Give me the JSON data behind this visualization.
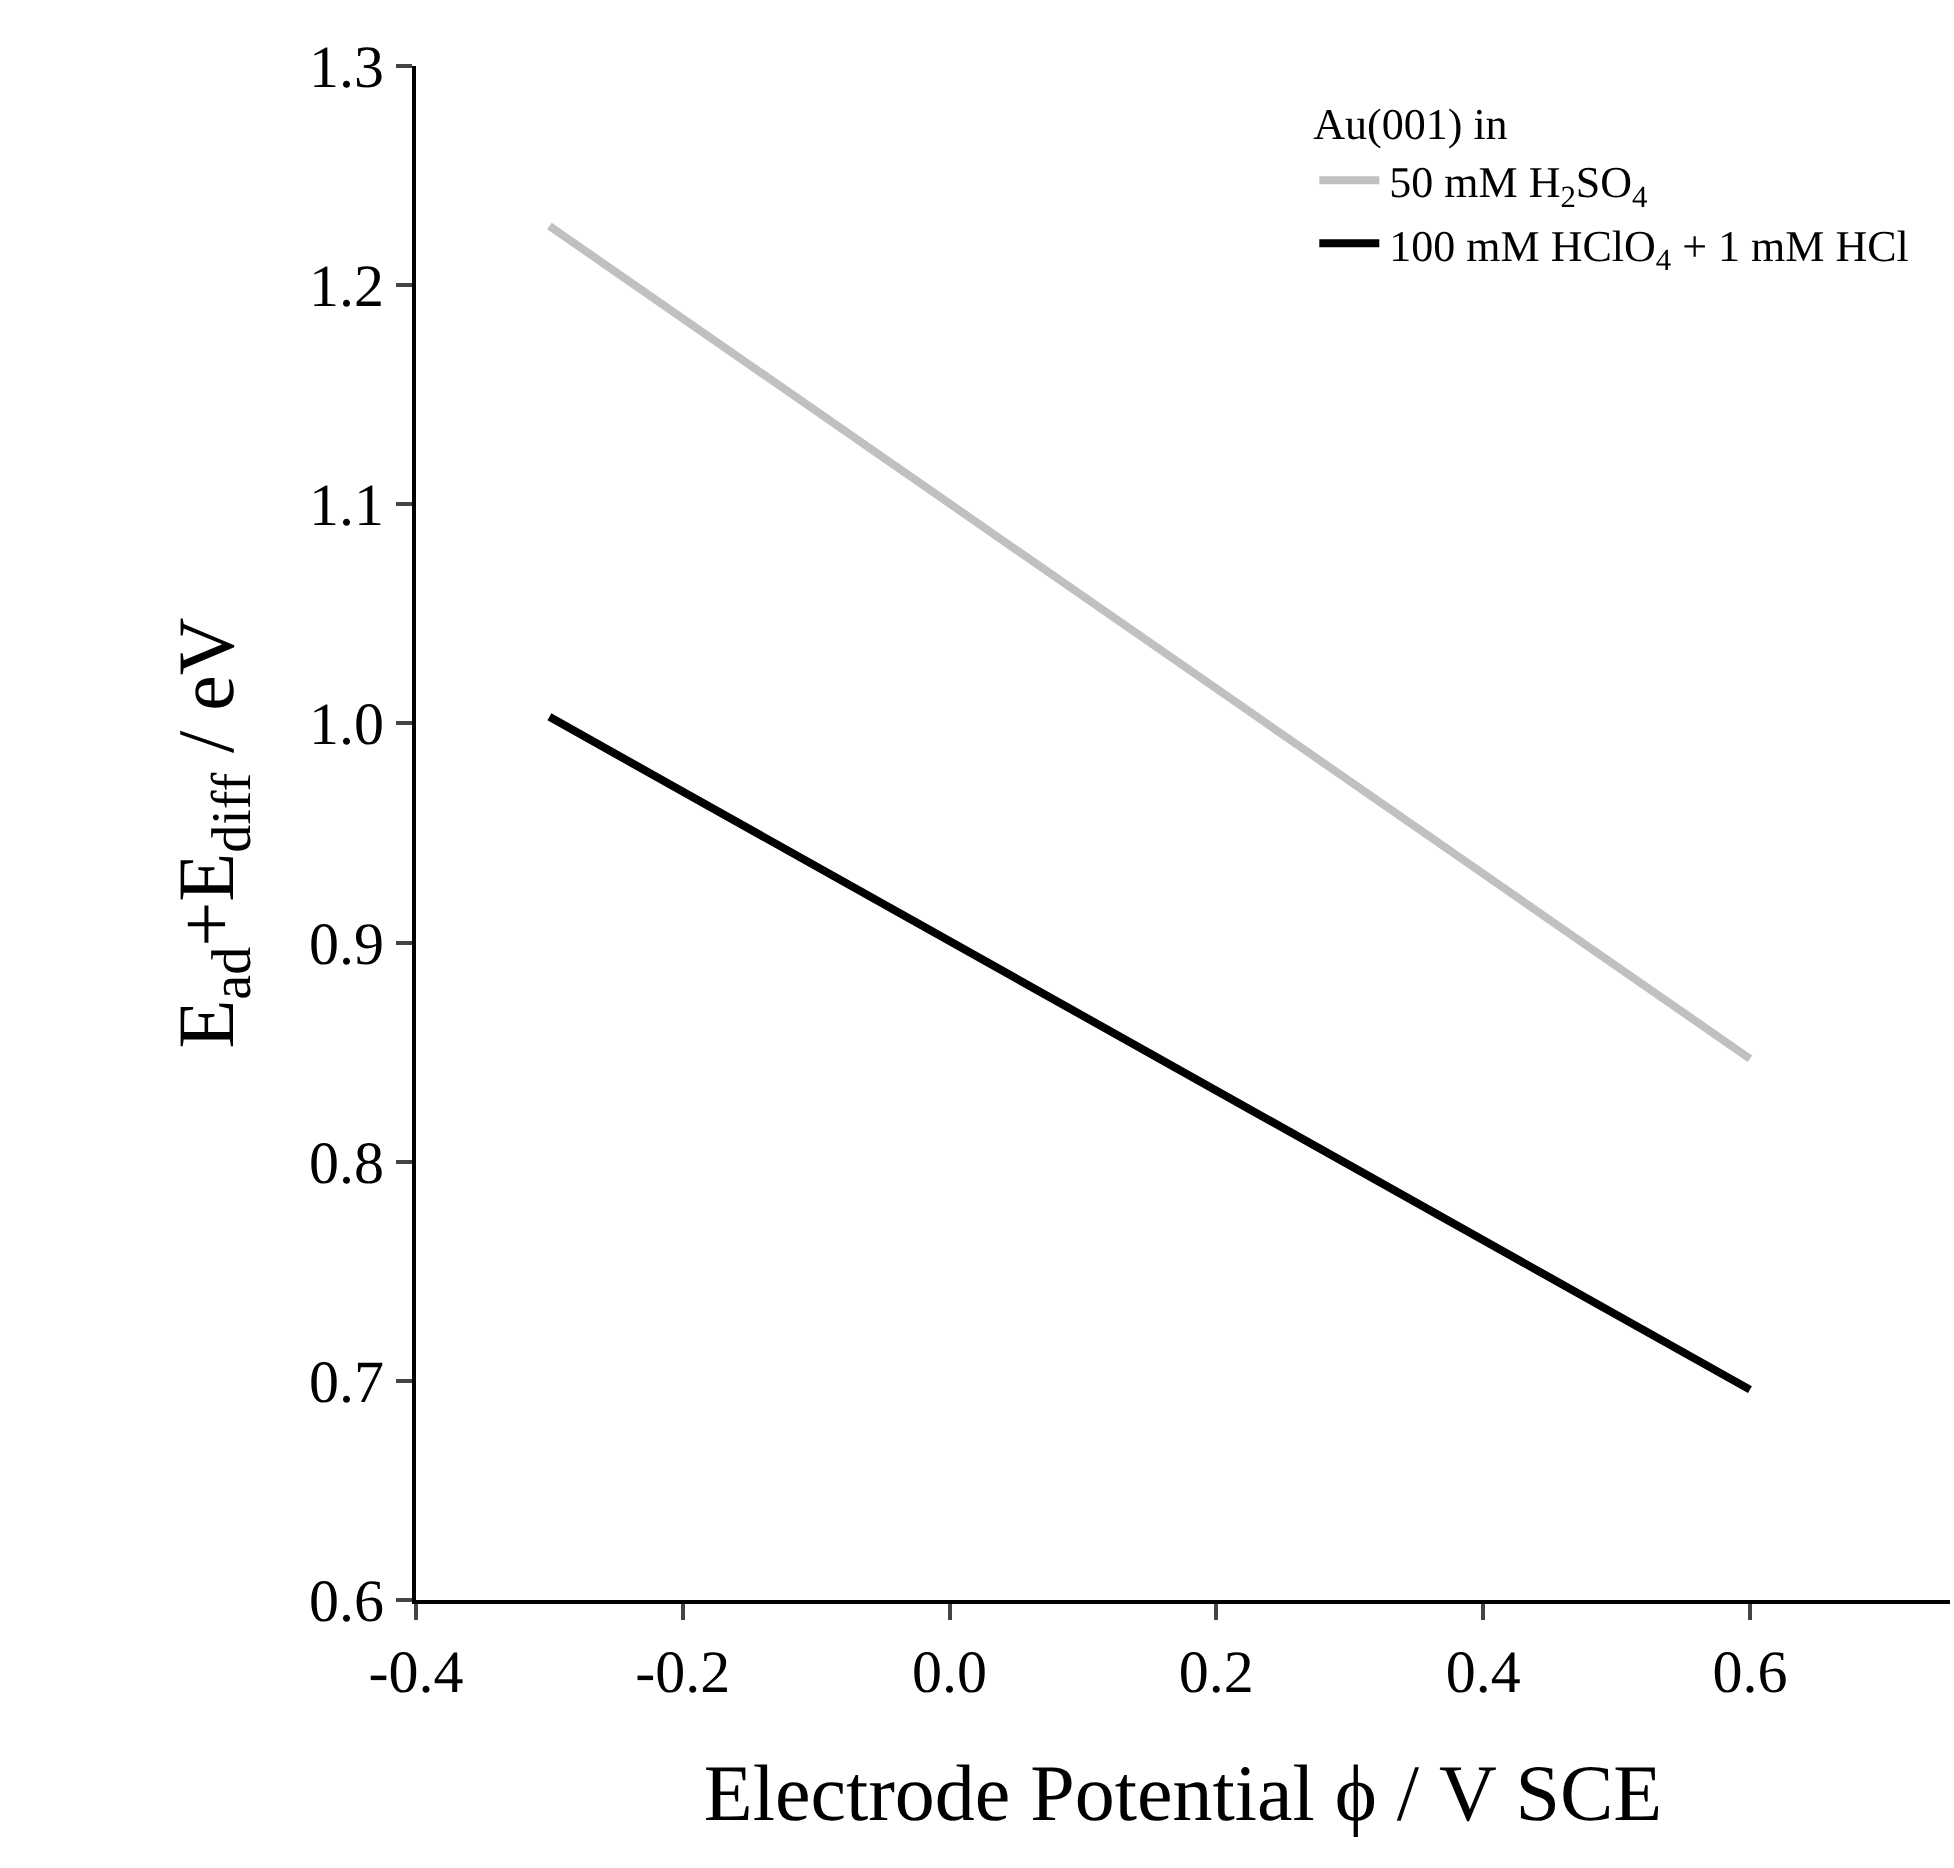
{
  "chart_data": {
    "type": "line",
    "xlabel": "Electrode Potential ϕ / V SCE",
    "ylabel": "E$_{ad}$+E$_{diff}$ / eV",
    "legend_title": "Au(001) in",
    "x": [
      -0.3,
      0.6
    ],
    "series": [
      {
        "name": "50 mM H$_{2}$SO$_{4}$",
        "color": "#c0c0c0",
        "values": [
          1.227,
          0.847
        ]
      },
      {
        "name": "100 mM HClO$_{4}$ + 1 mM HCl",
        "color": "#000000",
        "values": [
          1.003,
          0.696
        ]
      }
    ],
    "xlim": [
      -0.4,
      0.75
    ],
    "xticks": [
      {
        "value": -0.4,
        "label": "-0.4"
      },
      {
        "value": -0.2,
        "label": "-0.2"
      },
      {
        "value": 0,
        "label": "0.0"
      },
      {
        "value": 0.2,
        "label": "0.2"
      },
      {
        "value": 0.4,
        "label": "0.4"
      },
      {
        "value": 0.6,
        "label": "0.6"
      }
    ],
    "ylim": [
      0.6,
      1.3
    ],
    "yticks": [
      0.6,
      0.7,
      0.8,
      0.9,
      {
        "value": 1,
        "label": "1.0"
      },
      1.1,
      1.2,
      1.3
    ],
    "grid": false,
    "legend": "top right",
    "marker": "none",
    "line_style": "solid"
  }
}
